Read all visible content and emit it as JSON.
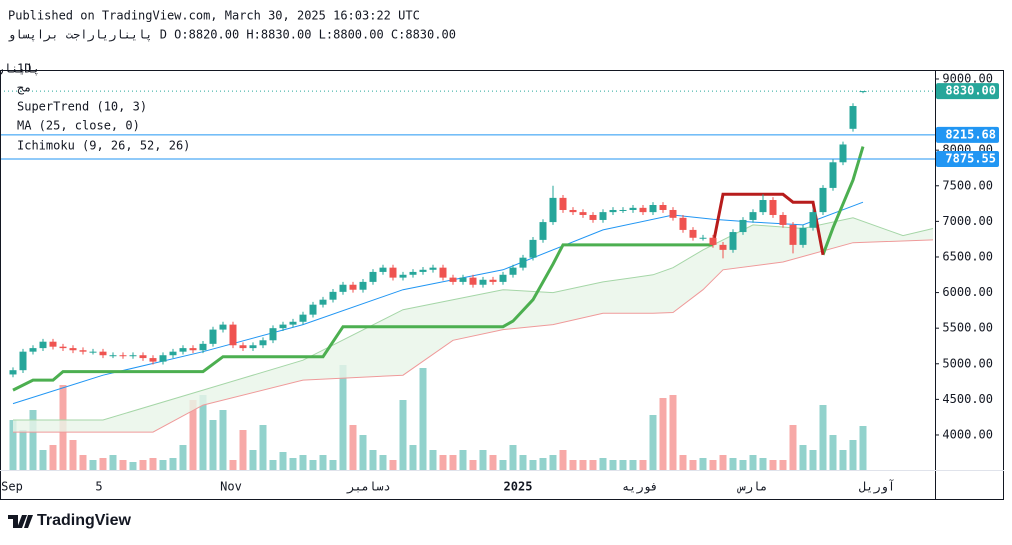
{
  "header": {
    "published": "Published on TradingView.com, March 30, 2025 16:03:22 UTC",
    "symbol_line": "پایناریاراجت براپساو D O:8820.00 H:8830.00 L:8800.00 C:8830.00"
  },
  "logo": "TradingView",
  "chart_data": {
    "type": "candlestick",
    "interval": "1D",
    "symbol": "پایناریا راجت براپساو,",
    "symbol_note": "مج",
    "up_color": "#26a69a",
    "down_color": "#ef5350",
    "xlim": [
      -0.5,
      92.2
    ],
    "ylim": [
      3508,
      9084
    ],
    "xticks": [
      {
        "value": -0.1,
        "label": "Sep"
      },
      {
        "value": 8.6,
        "label": "5"
      },
      {
        "value": 21.8,
        "label": "Nov"
      },
      {
        "value": 35.6,
        "label": "دسامبر"
      },
      {
        "value": 50.5,
        "label": "2025"
      },
      {
        "value": 62.7,
        "label": "فوریه"
      },
      {
        "value": 74,
        "label": "مارس"
      },
      {
        "value": 86.4,
        "label": "آوریل"
      }
    ],
    "yticks": [
      {
        "value": 9000,
        "label": "9000.00"
      },
      {
        "value": 8000,
        "label": "8000.00"
      },
      {
        "value": 7500,
        "label": "7500.00"
      },
      {
        "value": 7000,
        "label": "7000.00"
      },
      {
        "value": 6500,
        "label": "6500.00"
      },
      {
        "value": 6000,
        "label": "6000.00"
      },
      {
        "value": 5500,
        "label": "5500.00"
      },
      {
        "value": 5000,
        "label": "5000.00"
      },
      {
        "value": 4500,
        "label": "4500.00"
      },
      {
        "value": 4000,
        "label": "4000.00"
      }
    ],
    "open": [
      4850,
      4910,
      5170,
      5220,
      5310,
      5240,
      5220,
      5190,
      5170,
      5170,
      5120,
      5120,
      5110,
      5120,
      5080,
      5030,
      5120,
      5170,
      5220,
      5190,
      5280,
      5480,
      5550,
      5260,
      5220,
      5260,
      5330,
      5500,
      5550,
      5590,
      5690,
      5830,
      5900,
      6010,
      6110,
      6040,
      6150,
      6290,
      6350,
      6210,
      6250,
      6290,
      6320,
      6350,
      6210,
      6150,
      6210,
      6110,
      6180,
      6150,
      6250,
      6350,
      6490,
      6740,
      6990,
      7330,
      7160,
      7130,
      7090,
      7020,
      7130,
      7160,
      7160,
      7190,
      7130,
      7230,
      7160,
      7050,
      6880,
      6770,
      6770,
      6670,
      6600,
      6850,
      7020,
      7130,
      7300,
      7090,
      6950,
      6670,
      6910,
      7130,
      7470,
      7830,
      8300,
      8820
    ],
    "high": [
      4950,
      5210,
      5260,
      5350,
      5350,
      5280,
      5260,
      5230,
      5210,
      5210,
      5160,
      5160,
      5160,
      5160,
      5120,
      5160,
      5210,
      5260,
      5260,
      5320,
      5520,
      5590,
      5590,
      5300,
      5300,
      5370,
      5540,
      5590,
      5630,
      5730,
      5870,
      5940,
      6050,
      6150,
      6150,
      6190,
      6330,
      6390,
      6390,
      6290,
      6330,
      6360,
      6390,
      6390,
      6250,
      6250,
      6250,
      6220,
      6220,
      6290,
      6390,
      6530,
      6780,
      7030,
      7500,
      7370,
      7200,
      7170,
      7130,
      7170,
      7200,
      7200,
      7230,
      7230,
      7270,
      7270,
      7200,
      7090,
      6920,
      6810,
      6810,
      6710,
      6890,
      7060,
      7170,
      7380,
      7340,
      7130,
      6990,
      6950,
      7170,
      7510,
      7870,
      8120,
      8660,
      8830
    ],
    "low": [
      4810,
      4870,
      5130,
      5180,
      5200,
      5180,
      5150,
      5130,
      5130,
      5080,
      5080,
      5070,
      5070,
      5040,
      4990,
      4990,
      5080,
      5130,
      5150,
      5150,
      5240,
      5440,
      5220,
      5180,
      5180,
      5220,
      5290,
      5460,
      5510,
      5550,
      5650,
      5790,
      5860,
      5970,
      6000,
      6000,
      6110,
      6250,
      6170,
      6170,
      6210,
      6250,
      6280,
      6170,
      6110,
      6110,
      6070,
      6070,
      6110,
      6110,
      6210,
      6310,
      6450,
      6700,
      6950,
      7120,
      7090,
      7050,
      6980,
      6980,
      7090,
      7120,
      7120,
      7090,
      7090,
      7120,
      7010,
      6840,
      6730,
      6730,
      6630,
      6480,
      6560,
      6810,
      6980,
      7090,
      7050,
      6910,
      6550,
      6630,
      6870,
      7090,
      7430,
      7790,
      8260,
      8800
    ],
    "close": [
      4910,
      5170,
      5220,
      5310,
      5240,
      5220,
      5190,
      5170,
      5170,
      5120,
      5120,
      5110,
      5120,
      5080,
      5030,
      5120,
      5170,
      5220,
      5190,
      5280,
      5480,
      5550,
      5260,
      5220,
      5260,
      5330,
      5500,
      5550,
      5590,
      5690,
      5830,
      5900,
      6010,
      6110,
      6040,
      6150,
      6290,
      6350,
      6210,
      6250,
      6290,
      6320,
      6350,
      6210,
      6150,
      6210,
      6110,
      6180,
      6150,
      6250,
      6350,
      6490,
      6740,
      6990,
      7330,
      7160,
      7130,
      7090,
      7020,
      7130,
      7160,
      7160,
      7190,
      7130,
      7230,
      7160,
      7050,
      6880,
      6770,
      6770,
      6670,
      6600,
      6850,
      7020,
      7130,
      7300,
      7090,
      6950,
      6670,
      6910,
      7130,
      7470,
      7830,
      8080,
      8620,
      8830
    ],
    "volume": [
      50,
      40,
      60,
      20,
      25,
      85,
      30,
      15,
      10,
      12,
      15,
      10,
      8,
      10,
      12,
      10,
      12,
      25,
      70,
      75,
      50,
      60,
      10,
      40,
      20,
      45,
      10,
      18,
      12,
      15,
      10,
      15,
      10,
      105,
      45,
      35,
      20,
      15,
      10,
      70,
      25,
      102,
      20,
      15,
      15,
      20,
      10,
      20,
      15,
      10,
      25,
      15,
      10,
      12,
      15,
      20,
      10,
      10,
      10,
      12,
      10,
      10,
      10,
      10,
      55,
      72,
      75,
      15,
      10,
      12,
      10,
      15,
      12,
      10,
      15,
      12,
      10,
      10,
      45,
      25,
      20,
      65,
      35,
      20,
      30,
      44
    ],
    "price_lines": [
      {
        "value": 8830,
        "label": "8830.00",
        "color": "#26a69a",
        "style": "dotted"
      },
      {
        "value": 8215.68,
        "label": "8215.68",
        "color": "#2196f3",
        "style": "solid"
      },
      {
        "value": 7875.55,
        "label": "7875.55",
        "color": "#2196f3",
        "style": "solid"
      }
    ],
    "indicators": {
      "supertrend": {
        "name": "SuperTrend (10, 3)",
        "up_color": "#4caf50",
        "down_color": "#b71c1c",
        "up_x": [
          0,
          2,
          4,
          5,
          19,
          21,
          31,
          33,
          49,
          50,
          52,
          54,
          55,
          70,
          75,
          81,
          82,
          84,
          85
        ],
        "up": [
          4630,
          4770,
          4770,
          4890,
          4890,
          5100,
          5100,
          5520,
          5520,
          5600,
          5900,
          6400,
          6670,
          6670,
          null,
          6530,
          6910,
          7580,
          8050
        ],
        "down_x": [
          70,
          71,
          77,
          78,
          80,
          81
        ],
        "down": [
          6670,
          7380,
          7380,
          7270,
          7270,
          6530
        ]
      },
      "ma": {
        "name": "MA (25, close, 0)",
        "color": "#2196f3",
        "x": [
          0,
          9,
          19,
          29,
          39,
          49,
          59,
          66,
          70,
          74,
          79,
          85
        ],
        "values": [
          4440,
          4840,
          5170,
          5550,
          6040,
          6320,
          6880,
          7090,
          7030,
          6990,
          6950,
          7270
        ]
      },
      "ichimoku": {
        "name": "Ichimoku (9, 26, 52, 26)",
        "cloud_color": "#e8f5e9",
        "span_a": {
          "color": "#a5d6a7",
          "x": [
            0,
            9,
            19,
            29,
            39,
            44,
            49,
            54,
            59,
            64,
            66,
            69,
            74,
            79,
            84,
            89,
            92
          ],
          "values": [
            4210,
            4210,
            4630,
            5050,
            5760,
            5900,
            6040,
            6000,
            6150,
            6250,
            6350,
            6600,
            6950,
            6900,
            7050,
            6800,
            6900
          ]
        },
        "span_b": {
          "color": "#ef9a9a",
          "x": [
            0,
            9,
            14,
            19,
            29,
            39,
            44,
            49,
            54,
            59,
            64,
            66,
            69,
            71,
            77,
            84,
            92
          ],
          "values": [
            4040,
            4040,
            4040,
            4420,
            4770,
            4840,
            5330,
            5480,
            5550,
            5710,
            5710,
            5720,
            6040,
            6320,
            6430,
            6700,
            6740
          ]
        }
      }
    }
  }
}
